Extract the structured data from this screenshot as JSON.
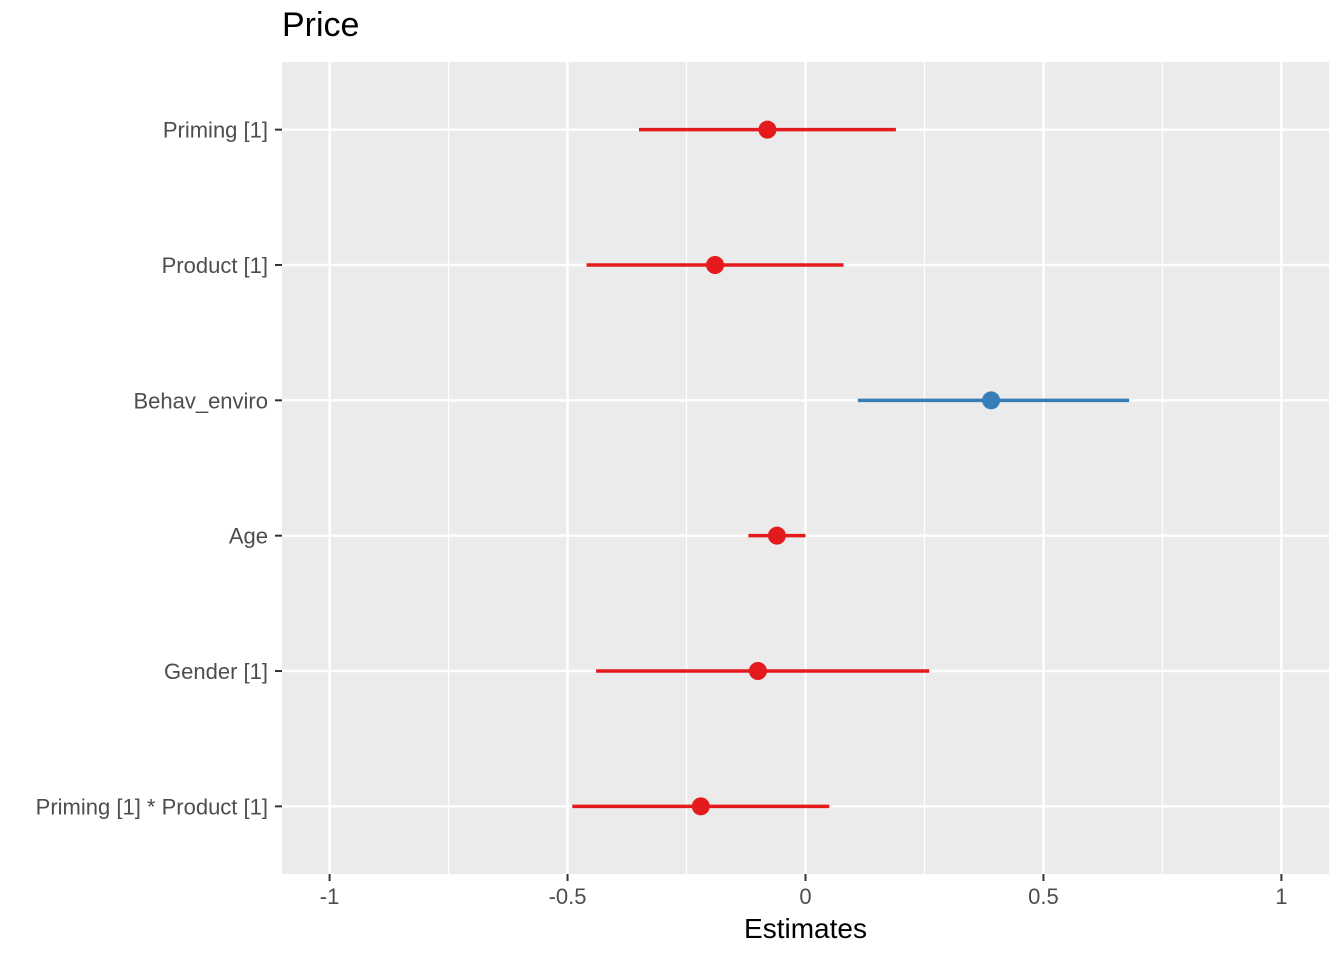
{
  "chart_data": {
    "type": "scatter",
    "title": "Price",
    "xlabel": "Estimates",
    "ylabel": "",
    "xlim": [
      -1.1,
      1.1
    ],
    "x_ticks": [
      -1,
      -0.5,
      0,
      0.5,
      1
    ],
    "x_tick_labels": [
      "-1",
      "-0.5",
      "0",
      "0.5",
      "1"
    ],
    "grid": true,
    "legend": "none",
    "colors": {
      "negative": "#e41a1c",
      "positive": "#377eb8",
      "panel": "#ebebeb",
      "grid": "#ffffff",
      "text": "#4d4d4d"
    },
    "terms": [
      {
        "label": "Priming [1]",
        "estimate": -0.08,
        "conf_low": -0.35,
        "conf_high": 0.19
      },
      {
        "label": "Product [1]",
        "estimate": -0.19,
        "conf_low": -0.46,
        "conf_high": 0.08
      },
      {
        "label": "Behav_enviro",
        "estimate": 0.39,
        "conf_low": 0.11,
        "conf_high": 0.68
      },
      {
        "label": "Age",
        "estimate": -0.06,
        "conf_low": -0.12,
        "conf_high": 0.0
      },
      {
        "label": "Gender [1]",
        "estimate": -0.1,
        "conf_low": -0.44,
        "conf_high": 0.26
      },
      {
        "label": "Priming [1] * Product [1]",
        "estimate": -0.22,
        "conf_low": -0.49,
        "conf_high": 0.05
      }
    ]
  }
}
